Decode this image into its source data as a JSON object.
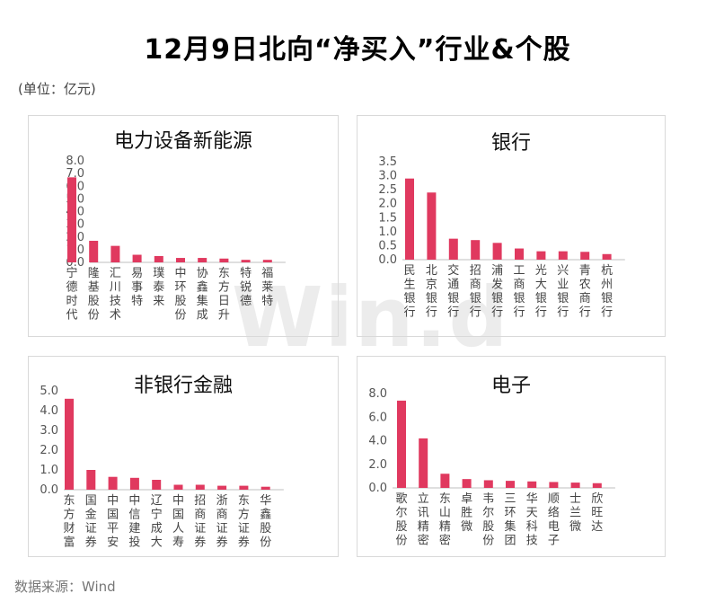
{
  "title": "12月9日北向“净买入”行业&个股",
  "unit_note": "(单位：亿元)",
  "source_note": "数据来源：Wind",
  "watermark": "Win.d",
  "colors": {
    "bar": "#e0395f",
    "axis": "#bfbfbf"
  },
  "chart_data": [
    {
      "type": "bar",
      "title": "电力设备新能源",
      "categories": [
        "宁德时代",
        "隆基股份",
        "汇川技术",
        "易事特",
        "璞泰来",
        "中环股份",
        "协鑫集成",
        "东方日升",
        "特锐德",
        "福莱特"
      ],
      "values": [
        6.7,
        1.7,
        1.3,
        0.6,
        0.5,
        0.35,
        0.35,
        0.3,
        0.2,
        0.2
      ],
      "ylim": [
        0,
        8
      ],
      "yticks": [
        "0.0",
        "1.0",
        "2.0",
        "3.0",
        "4.0",
        "5.0",
        "6.0",
        "7.0",
        "8.0"
      ]
    },
    {
      "type": "bar",
      "title": "银行",
      "categories": [
        "民生银行",
        "北京银行",
        "交通银行",
        "招商银行",
        "浦发银行",
        "工商银行",
        "光大银行",
        "兴业银行",
        "青农商行",
        "杭州银行"
      ],
      "values": [
        2.9,
        2.4,
        0.75,
        0.7,
        0.6,
        0.4,
        0.3,
        0.3,
        0.28,
        0.2
      ],
      "ylim": [
        0,
        3.5
      ],
      "yticks": [
        "0.0",
        "0.5",
        "1.0",
        "1.5",
        "2.0",
        "2.5",
        "3.0",
        "3.5"
      ]
    },
    {
      "type": "bar",
      "title": "非银行金融",
      "categories": [
        "东方财富",
        "国金证券",
        "中国平安",
        "中信建投",
        "辽宁成大",
        "中国人寿",
        "招商证券",
        "浙商证券",
        "东方证券",
        "华鑫股份"
      ],
      "values": [
        4.6,
        1.0,
        0.65,
        0.6,
        0.5,
        0.25,
        0.25,
        0.2,
        0.2,
        0.15
      ],
      "ylim": [
        0,
        5
      ],
      "yticks": [
        "0.0",
        "1.0",
        "2.0",
        "3.0",
        "4.0",
        "5.0"
      ]
    },
    {
      "type": "bar",
      "title": "电子",
      "categories": [
        "歌尔股份",
        "立讯精密",
        "东山精密",
        "卓胜微",
        "韦尔股份",
        "三环集团",
        "华天科技",
        "顺络电子",
        "士兰微",
        "欣旺达"
      ],
      "values": [
        7.4,
        4.2,
        1.2,
        0.75,
        0.65,
        0.6,
        0.55,
        0.5,
        0.45,
        0.4
      ],
      "ylim": [
        0,
        8
      ],
      "yticks": [
        "0.0",
        "2.0",
        "4.0",
        "6.0",
        "8.0"
      ]
    }
  ]
}
